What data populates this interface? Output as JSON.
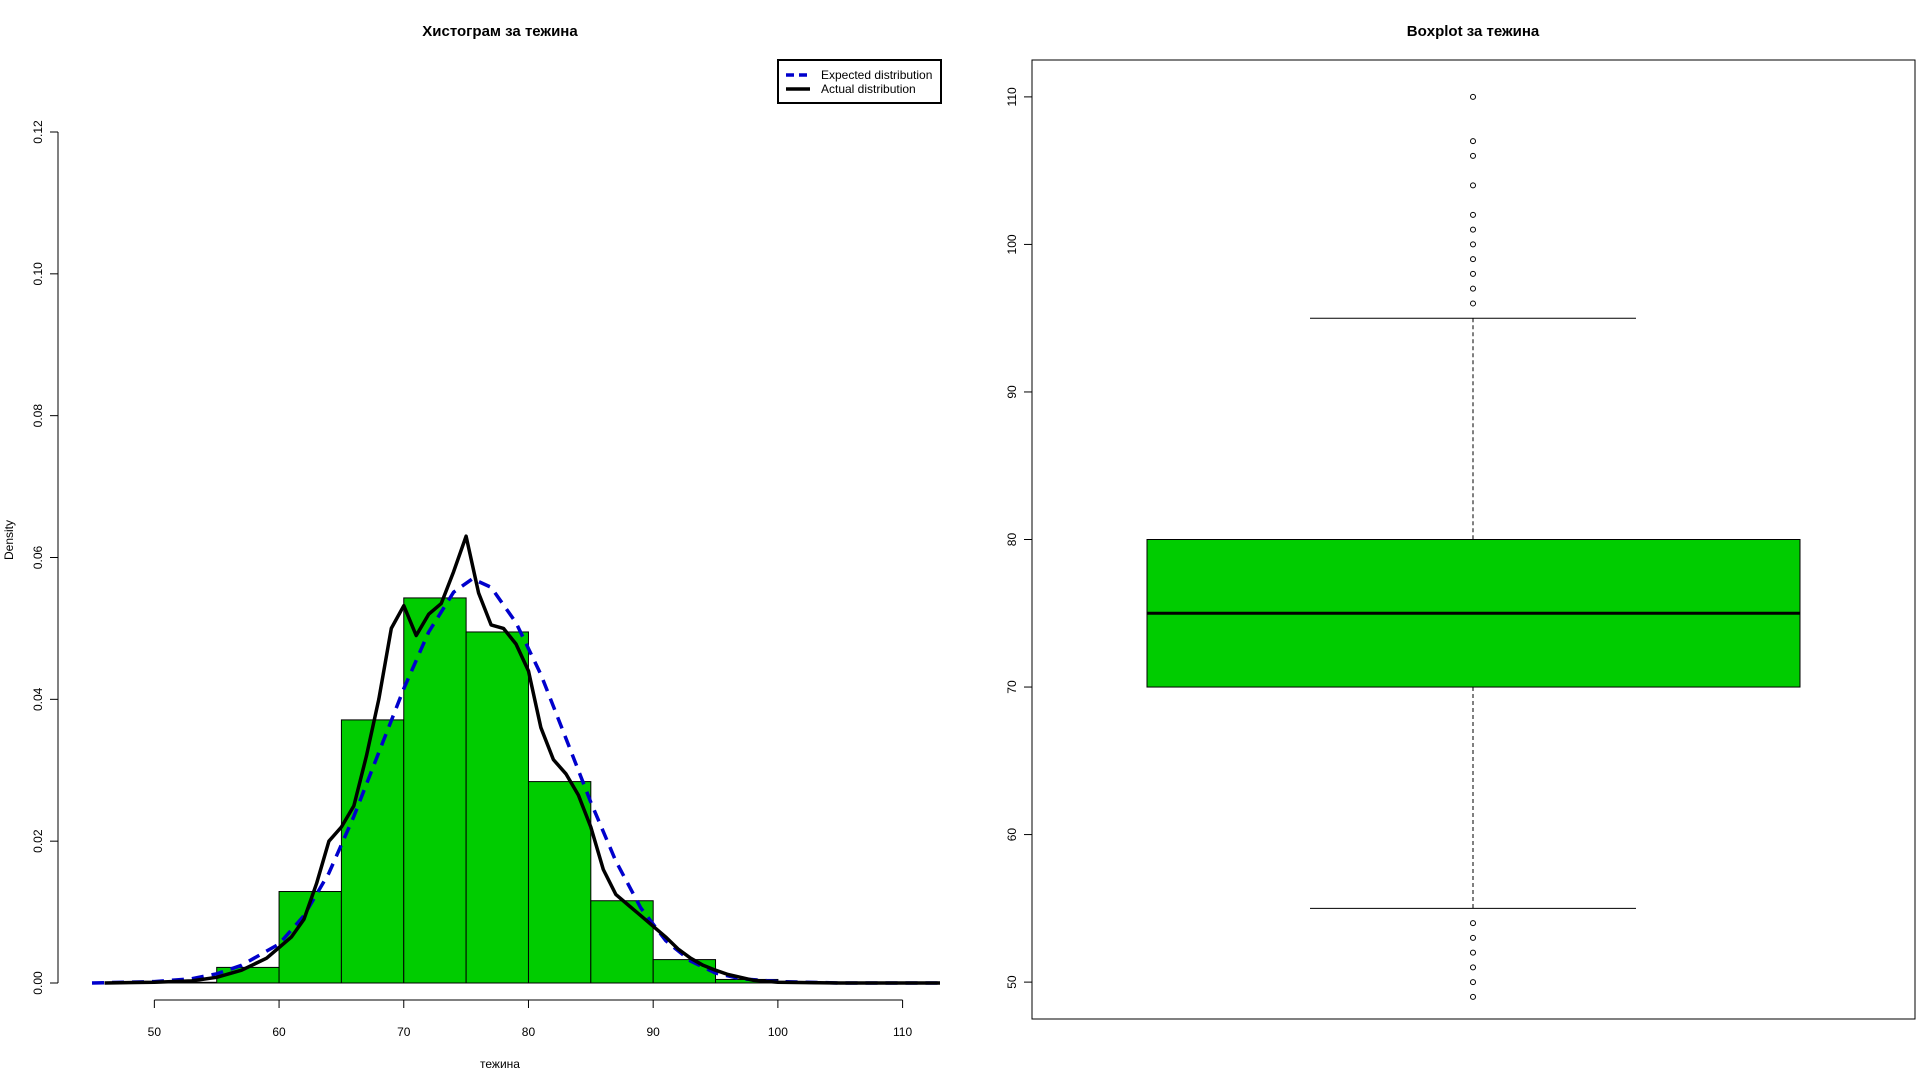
{
  "chart_data": [
    {
      "type": "bar",
      "title": "Хистограм за  тежина",
      "xlabel": "тежина",
      "ylabel": "Density",
      "xlim": [
        45,
        113
      ],
      "ylim": [
        0,
        0.12
      ],
      "x_ticks": [
        "50",
        "60",
        "70",
        "80",
        "90",
        "100",
        "110"
      ],
      "y_ticks": [
        "0.00",
        "0.02",
        "0.04",
        "0.06",
        "0.08",
        "0.10",
        "0.12"
      ],
      "bar_color": "#00cc00",
      "bins": [
        {
          "start": 50,
          "end": 55,
          "density": 0.0001
        },
        {
          "start": 55,
          "end": 60,
          "density": 0.0022
        },
        {
          "start": 60,
          "end": 65,
          "density": 0.0129
        },
        {
          "start": 65,
          "end": 70,
          "density": 0.0371
        },
        {
          "start": 70,
          "end": 75,
          "density": 0.0543
        },
        {
          "start": 75,
          "end": 80,
          "density": 0.0495
        },
        {
          "start": 80,
          "end": 85,
          "density": 0.0284
        },
        {
          "start": 85,
          "end": 90,
          "density": 0.0116
        },
        {
          "start": 90,
          "end": 95,
          "density": 0.0033
        },
        {
          "start": 95,
          "end": 100,
          "density": 0.0005
        }
      ],
      "legend": {
        "position": "top-right",
        "entries": [
          {
            "label": "Expected distribution",
            "color": "#0000cc",
            "style": "dashed"
          },
          {
            "label": "Actual distribution",
            "color": "#000000",
            "style": "solid"
          }
        ]
      },
      "series": [
        {
          "name": "Expected distribution",
          "color": "#0000cc",
          "style": "dashed",
          "x": [
            45,
            50,
            53,
            55,
            57,
            60,
            62,
            64,
            66,
            68,
            70,
            72,
            74,
            75.5,
            77,
            79,
            81,
            83,
            85,
            87,
            89,
            91,
            93,
            95,
            97,
            100,
            105,
            113
          ],
          "y": [
            0.0,
            0.0002,
            0.0006,
            0.0013,
            0.0025,
            0.0055,
            0.0095,
            0.0155,
            0.0235,
            0.0325,
            0.0415,
            0.0495,
            0.0551,
            0.057,
            0.0558,
            0.0508,
            0.0435,
            0.0345,
            0.0255,
            0.0172,
            0.0106,
            0.006,
            0.0031,
            0.0014,
            0.0006,
            0.0002,
            0.0,
            0.0
          ]
        },
        {
          "name": "Actual distribution",
          "color": "#000000",
          "style": "solid",
          "x": [
            46,
            50,
            53,
            55,
            57,
            59,
            60,
            61,
            62,
            63,
            64,
            65,
            66,
            67,
            68,
            69,
            70,
            71,
            72,
            73,
            74,
            75,
            76,
            77,
            78,
            79,
            80,
            81,
            82,
            83,
            84,
            85,
            86,
            87,
            88,
            89,
            90,
            91,
            92,
            93,
            94,
            95,
            96,
            97,
            98,
            100,
            105,
            113
          ],
          "y": [
            0.0,
            0.0001,
            0.0003,
            0.0008,
            0.0018,
            0.0035,
            0.005,
            0.0065,
            0.009,
            0.014,
            0.02,
            0.022,
            0.025,
            0.032,
            0.04,
            0.05,
            0.0532,
            0.049,
            0.052,
            0.0535,
            0.058,
            0.063,
            0.055,
            0.0505,
            0.05,
            0.0478,
            0.044,
            0.036,
            0.0315,
            0.0295,
            0.0265,
            0.022,
            0.016,
            0.0125,
            0.011,
            0.0095,
            0.008,
            0.0065,
            0.0048,
            0.0035,
            0.0025,
            0.0018,
            0.0012,
            0.0008,
            0.0004,
            0.0001,
            0.0,
            0.0
          ]
        }
      ]
    },
    {
      "type": "boxplot",
      "title": "Boxplot за  тежина",
      "ylim": [
        47.5,
        112.5
      ],
      "y_ticks": [
        "50",
        "60",
        "70",
        "80",
        "90",
        "100",
        "110"
      ],
      "box_color": "#00cc00",
      "whisker_low": 55,
      "q1": 70,
      "median": 75,
      "q3": 80,
      "whisker_high": 95,
      "outliers": [
        49,
        50,
        51,
        52,
        53,
        54,
        96,
        97,
        98,
        99,
        100,
        101,
        102,
        104,
        106,
        107,
        110
      ]
    }
  ]
}
